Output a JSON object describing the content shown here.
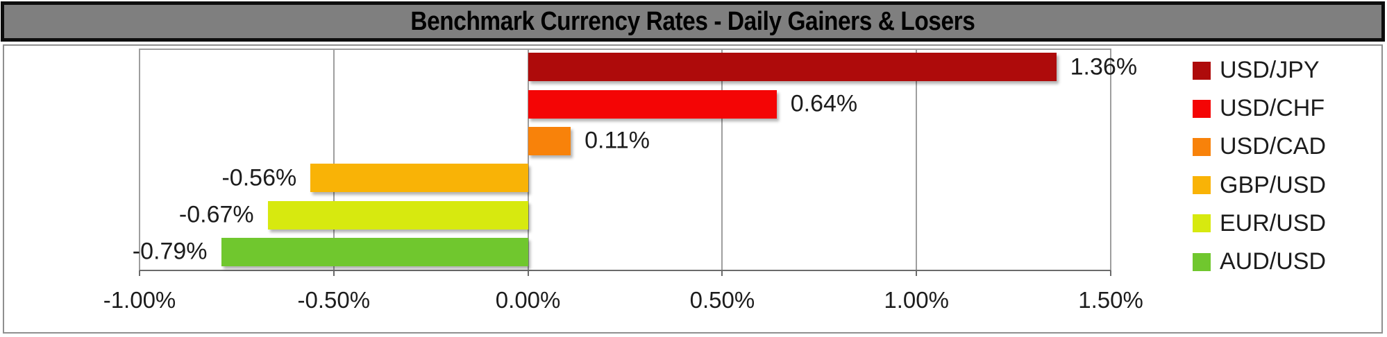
{
  "title_bar": {
    "text": "Benchmark Currency Rates - Daily Gainers & Losers"
  },
  "chart_data": {
    "type": "bar",
    "orientation": "horizontal",
    "title": "Benchmark Currency Rates - Daily Gainers & Losers",
    "series": [
      {
        "name": "USD/JPY",
        "value": 1.36,
        "label": "1.36%",
        "color": "#AE0B0B"
      },
      {
        "name": "USD/CHF",
        "value": 0.64,
        "label": "0.64%",
        "color": "#F40505"
      },
      {
        "name": "USD/CAD",
        "value": 0.11,
        "label": "0.11%",
        "color": "#F8820A"
      },
      {
        "name": "GBP/USD",
        "value": -0.56,
        "label": "-0.56%",
        "color": "#F9B306"
      },
      {
        "name": "EUR/USD",
        "value": -0.67,
        "label": "-0.67%",
        "color": "#D7E90F"
      },
      {
        "name": "AUD/USD",
        "value": -0.79,
        "label": "-0.79%",
        "color": "#70C72E"
      }
    ],
    "xlim": [
      -1.0,
      1.5
    ],
    "x_ticks": [
      {
        "value": -1.0,
        "label": "-1.00%"
      },
      {
        "value": -0.5,
        "label": "-0.50%"
      },
      {
        "value": 0.0,
        "label": "0.00%"
      },
      {
        "value": 0.5,
        "label": "0.50%"
      },
      {
        "value": 1.0,
        "label": "1.00%"
      },
      {
        "value": 1.5,
        "label": "1.50%"
      }
    ],
    "grid": true,
    "legend_position": "right",
    "legend_entries": [
      "USD/JPY",
      "USD/CHF",
      "USD/CAD",
      "GBP/USD",
      "EUR/USD",
      "AUD/USD"
    ]
  },
  "colors": {
    "title_bg": "#7F7F7F",
    "title_text": "#000000",
    "title_border": "#0D0D0D",
    "chart_bg": "#FFFFFF",
    "chart_border": "#8F8F8F",
    "gridline": "#9E9E9E",
    "axis_line": "#6A6A6A",
    "label_text": "#1C1C1C"
  }
}
